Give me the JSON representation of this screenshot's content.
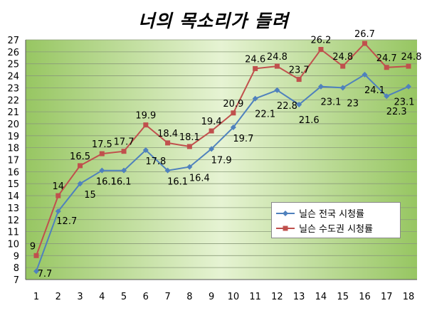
{
  "chart_data": {
    "type": "line",
    "title": "너의 목소리가 들려",
    "categories": [
      "1",
      "2",
      "3",
      "4",
      "5",
      "6",
      "7",
      "8",
      "9",
      "10",
      "11",
      "12",
      "13",
      "14",
      "15",
      "16",
      "17",
      "18"
    ],
    "ylim": [
      7,
      27
    ],
    "yticks": [
      "7",
      "8",
      "9",
      "10",
      "11",
      "12",
      "13",
      "14",
      "15",
      "16",
      "17",
      "18",
      "19",
      "20",
      "21",
      "22",
      "23",
      "24",
      "25",
      "26",
      "27"
    ],
    "grid": true,
    "legend_position": "right",
    "series": [
      {
        "name": "닐슨 전국 시청률",
        "color": "#4f81bd",
        "marker": "diamond",
        "values": [
          7.7,
          12.7,
          15,
          16.1,
          16.1,
          17.8,
          16.1,
          16.4,
          17.9,
          19.7,
          22.1,
          22.8,
          21.6,
          23.1,
          23,
          24.1,
          22.3,
          23.1
        ],
        "labels": [
          "7.7",
          "12.7",
          "15",
          "16.1",
          "16.1",
          "17.8",
          "16.1",
          "16.4",
          "17.9",
          "19.7",
          "22.1",
          "22.8",
          "21.6",
          "23.1",
          "23",
          "24.1",
          "22.3",
          "23.1"
        ]
      },
      {
        "name": "닐슨 수도권 시청률",
        "color": "#c0504d",
        "marker": "square",
        "values": [
          9,
          14,
          16.5,
          17.5,
          17.7,
          19.9,
          18.4,
          18.1,
          19.4,
          20.9,
          24.6,
          24.8,
          23.7,
          26.2,
          24.8,
          26.7,
          24.7,
          24.8
        ],
        "labels": [
          "9",
          "14",
          "16.5",
          "17.5",
          "17.7",
          "19.9",
          "18.4",
          "18.1",
          "19.4",
          "20.9",
          "24.6",
          "24.8",
          "23.7",
          "26.2",
          "24.8",
          "26.7",
          "24.7",
          "24.8"
        ]
      }
    ]
  }
}
